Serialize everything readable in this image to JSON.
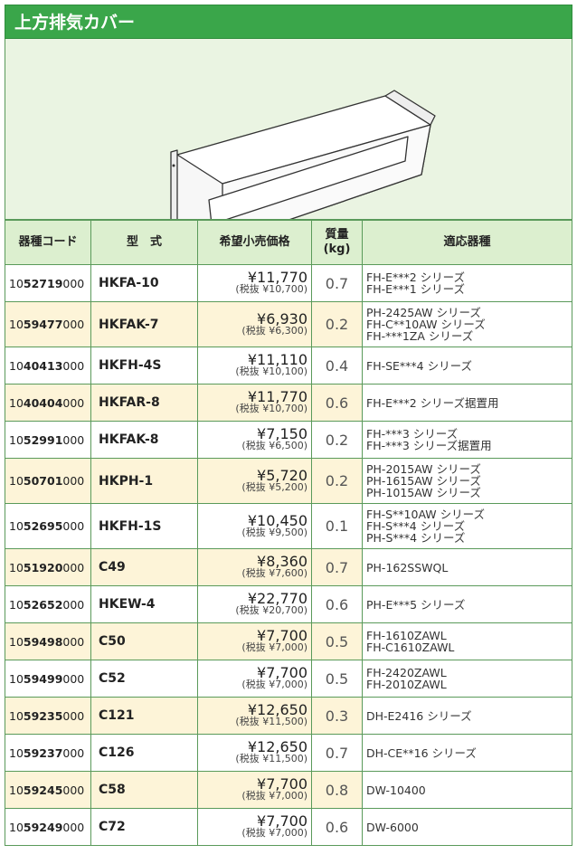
{
  "header": {
    "title": "上方排気カバー"
  },
  "table": {
    "columns": [
      "器種コード",
      "型　式",
      "希望小売価格",
      "質量\n(kg)",
      "適応器種"
    ],
    "rows": [
      {
        "code": {
          "pre": "10",
          "main": "52719",
          "post": "000"
        },
        "model": "HKFA-10",
        "price": "¥11,770",
        "price_ex": "(税抜 ¥10,700)",
        "weight": "0.7",
        "fits": [
          "FH-E***2 シリーズ",
          "FH-E***1 シリーズ"
        ]
      },
      {
        "code": {
          "pre": "10",
          "main": "59477",
          "post": "000"
        },
        "model": "HKFAK-7",
        "price": "¥6,930",
        "price_ex": "(税抜 ¥6,300)",
        "weight": "0.2",
        "fits": [
          "PH-2425AW シリーズ",
          "FH-C**10AW シリーズ",
          "FH-***1ZA シリーズ"
        ]
      },
      {
        "code": {
          "pre": "10",
          "main": "40413",
          "post": "000"
        },
        "model": "HKFH-4S",
        "price": "¥11,110",
        "price_ex": "(税抜 ¥10,100)",
        "weight": "0.4",
        "fits": [
          "FH-SE***4 シリーズ"
        ]
      },
      {
        "code": {
          "pre": "10",
          "main": "40404",
          "post": "000"
        },
        "model": "HKFAR-8",
        "price": "¥11,770",
        "price_ex": "(税抜 ¥10,700)",
        "weight": "0.6",
        "fits": [
          "FH-E***2 シリーズ据置用"
        ]
      },
      {
        "code": {
          "pre": "10",
          "main": "52991",
          "post": "000"
        },
        "model": "HKFAK-8",
        "price": "¥7,150",
        "price_ex": "(税抜 ¥6,500)",
        "weight": "0.2",
        "fits": [
          "FH-***3 シリーズ",
          "FH-***3 シリーズ据置用"
        ]
      },
      {
        "code": {
          "pre": "10",
          "main": "50701",
          "post": "000"
        },
        "model": "HKPH-1",
        "price": "¥5,720",
        "price_ex": "(税抜 ¥5,200)",
        "weight": "0.2",
        "fits": [
          "PH-2015AW シリーズ",
          "PH-1615AW シリーズ",
          "PH-1015AW シリーズ"
        ]
      },
      {
        "code": {
          "pre": "10",
          "main": "52695",
          "post": "000"
        },
        "model": "HKFH-1S",
        "price": "¥10,450",
        "price_ex": "(税抜 ¥9,500)",
        "weight": "0.1",
        "fits": [
          "FH-S**10AW シリーズ",
          "FH-S***4 シリーズ",
          "PH-S***4 シリーズ"
        ]
      },
      {
        "code": {
          "pre": "10",
          "main": "51920",
          "post": "000"
        },
        "model": "C49",
        "price": "¥8,360",
        "price_ex": "(税抜 ¥7,600)",
        "weight": "0.7",
        "fits": [
          "PH-162SSWQL"
        ]
      },
      {
        "code": {
          "pre": "10",
          "main": "52652",
          "post": "000"
        },
        "model": "HKEW-4",
        "price": "¥22,770",
        "price_ex": "(税抜 ¥20,700)",
        "weight": "0.6",
        "fits": [
          "PH-E***5 シリーズ"
        ]
      },
      {
        "code": {
          "pre": "10",
          "main": "59498",
          "post": "000"
        },
        "model": "C50",
        "price": "¥7,700",
        "price_ex": "(税抜 ¥7,000)",
        "weight": "0.5",
        "fits": [
          "FH-1610ZAWL",
          "FH-C1610ZAWL"
        ]
      },
      {
        "code": {
          "pre": "10",
          "main": "59499",
          "post": "000"
        },
        "model": "C52",
        "price": "¥7,700",
        "price_ex": "(税抜 ¥7,000)",
        "weight": "0.5",
        "fits": [
          "FH-2420ZAWL",
          "FH-2010ZAWL"
        ]
      },
      {
        "code": {
          "pre": "10",
          "main": "59235",
          "post": "000"
        },
        "model": "C121",
        "price": "¥12,650",
        "price_ex": "(税抜 ¥11,500)",
        "weight": "0.3",
        "fits": [
          "DH-E2416 シリーズ"
        ]
      },
      {
        "code": {
          "pre": "10",
          "main": "59237",
          "post": "000"
        },
        "model": "C126",
        "price": "¥12,650",
        "price_ex": "(税抜 ¥11,500)",
        "weight": "0.7",
        "fits": [
          "DH-CE**16 シリーズ"
        ]
      },
      {
        "code": {
          "pre": "10",
          "main": "59245",
          "post": "000"
        },
        "model": "C58",
        "price": "¥7,700",
        "price_ex": "(税抜 ¥7,000)",
        "weight": "0.8",
        "fits": [
          "DW-10400"
        ]
      },
      {
        "code": {
          "pre": "10",
          "main": "59249",
          "post": "000"
        },
        "model": "C72",
        "price": "¥7,700",
        "price_ex": "(税抜 ¥7,000)",
        "weight": "0.6",
        "fits": [
          "DW-6000"
        ]
      }
    ]
  }
}
